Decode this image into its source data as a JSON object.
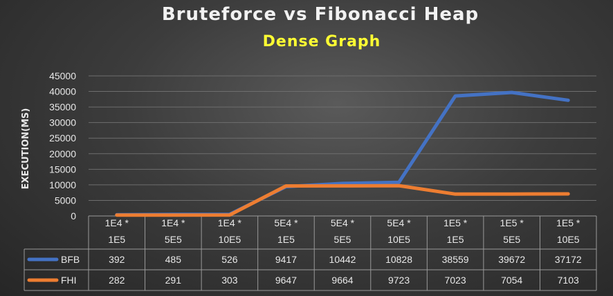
{
  "chart_data": {
    "type": "line",
    "title": "Bruteforce vs Fibonacci Heap",
    "subtitle": "Dense Graph",
    "ylabel": "EXECUTION(MS)",
    "xlabel": "",
    "ylim": [
      0,
      45000
    ],
    "yticks": [
      0,
      5000,
      10000,
      15000,
      20000,
      25000,
      30000,
      35000,
      40000,
      45000
    ],
    "grid": true,
    "legend": "data-table",
    "categories": [
      [
        "1E4 *",
        "1E5"
      ],
      [
        "1E4 *",
        "5E5"
      ],
      [
        "1E4 *",
        "10E5"
      ],
      [
        "5E4 *",
        "1E5"
      ],
      [
        "5E4 *",
        "5E5"
      ],
      [
        "5E4 *",
        "10E5"
      ],
      [
        "1E5 *",
        "1E5"
      ],
      [
        "1E5 *",
        "5E5"
      ],
      [
        "1E5 *",
        "10E5"
      ]
    ],
    "series": [
      {
        "name": "BFB",
        "color": "#4472c4",
        "values": [
          392,
          485,
          526,
          9417,
          10442,
          10828,
          38559,
          39672,
          37172
        ]
      },
      {
        "name": "FHI",
        "color": "#ed7d31",
        "values": [
          282,
          291,
          303,
          9647,
          9664,
          9723,
          7023,
          7054,
          7103
        ]
      }
    ]
  }
}
